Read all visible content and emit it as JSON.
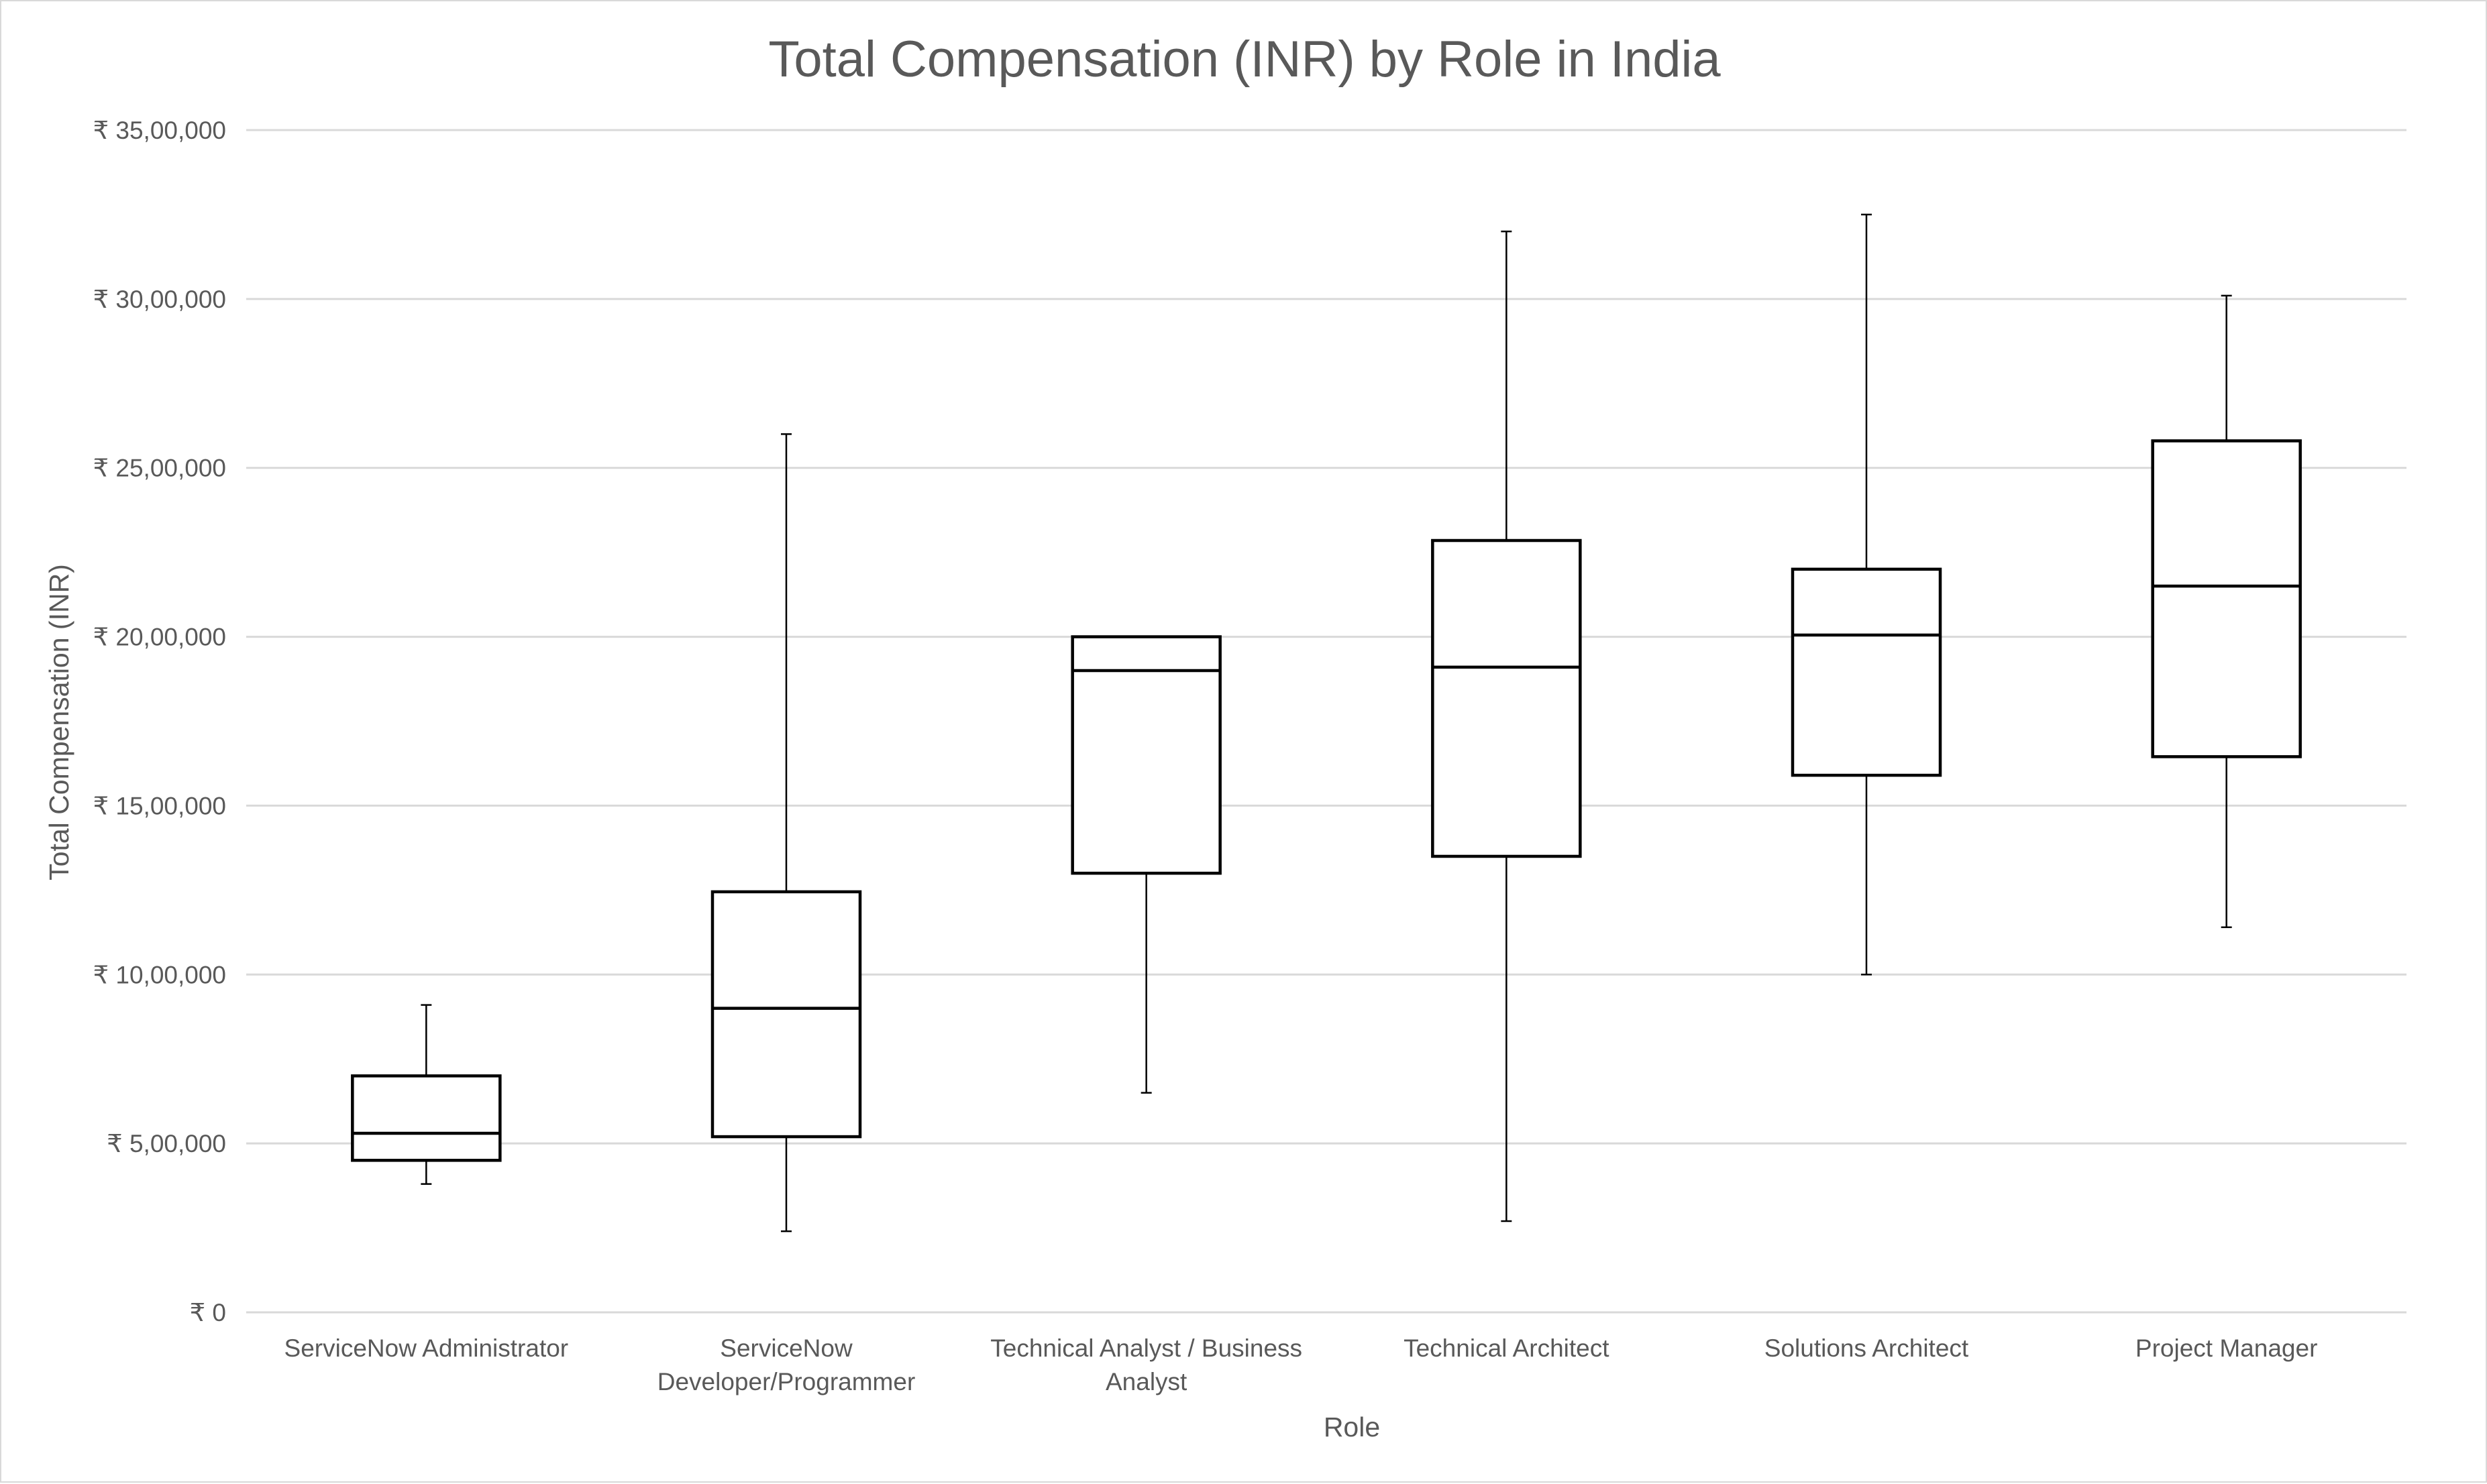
{
  "chart_data": {
    "type": "box",
    "title": "Total Compensation (INR) by Role in India",
    "xlabel": "Role",
    "ylabel": "Total Compensation (INR)",
    "ylim": [
      0,
      3500000
    ],
    "yticks": [
      0,
      500000,
      1000000,
      1500000,
      2000000,
      2500000,
      3000000,
      3500000
    ],
    "ytick_labels": [
      "₹ 0",
      "₹  5,00,000",
      "₹  10,00,000",
      "₹  15,00,000",
      "₹  20,00,000",
      "₹  25,00,000",
      "₹  30,00,000",
      "₹  35,00,000"
    ],
    "grid": true,
    "legend": "none",
    "categories": [
      [
        "ServiceNow Administrator"
      ],
      [
        "ServiceNow",
        "Developer/Programmer"
      ],
      [
        "Technical Analyst / Business",
        "Analyst"
      ],
      [
        "Technical Architect"
      ],
      [
        "Solutions Architect"
      ],
      [
        "Project Manager"
      ]
    ],
    "boxes": [
      {
        "min": 380000,
        "q1": 450000,
        "median": 530000,
        "q3": 700000,
        "max": 910000
      },
      {
        "min": 240000,
        "q1": 520000,
        "median": 900000,
        "q3": 1245000,
        "max": 2600000
      },
      {
        "min": 650000,
        "q1": 1300000,
        "median": 1900000,
        "q3": 2000000,
        "max": 2000000
      },
      {
        "min": 270000,
        "q1": 1350000,
        "median": 1910000,
        "q3": 2285000,
        "max": 3200000
      },
      {
        "min": 1000000,
        "q1": 1590000,
        "median": 2005000,
        "q3": 2200000,
        "max": 3250000
      },
      {
        "min": 1140000,
        "q1": 1645000,
        "median": 2150000,
        "q3": 2580000,
        "max": 3010000
      }
    ],
    "colors": {
      "box_fill": "#ffffff",
      "box_stroke": "#000000",
      "grid": "#d9d9d9",
      "text": "#595959"
    }
  }
}
